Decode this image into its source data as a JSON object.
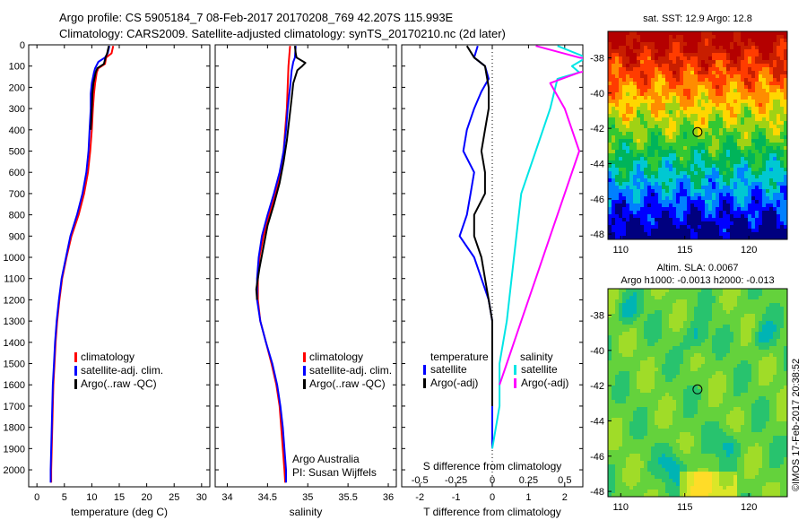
{
  "header": {
    "line1": "Argo profile: CS 5905184_7 08-Feb-2017 20170208_769 42.207S 115.993E",
    "line2": "Climatology: CARS2009. Satellite-adjusted climatology: synTS_20170210.nc (2d later)"
  },
  "colors": {
    "climatology": "#ff0000",
    "satellite": "#0000ff",
    "argo": "#000000",
    "sal_satellite": "#00e5e5",
    "sal_argo": "#ff00ff"
  },
  "chart_data": [
    {
      "type": "line",
      "panel": "temperature",
      "xlabel": "temperature (deg C)",
      "ylabel": "",
      "xlim": [
        -1.5,
        31.5
      ],
      "ylim": [
        2080,
        0
      ],
      "xticks": [
        0,
        5,
        10,
        15,
        20,
        25,
        30
      ],
      "yticks": [
        0,
        100,
        200,
        300,
        400,
        500,
        600,
        700,
        800,
        900,
        1000,
        1100,
        1200,
        1300,
        1400,
        1500,
        1600,
        1700,
        1800,
        1900,
        2000
      ],
      "legend": [
        "climatology",
        "satellite-adj. clim.",
        "Argo(..raw -QC)"
      ],
      "series": [
        {
          "name": "climatology",
          "color_key": "climatology",
          "points": [
            [
              13.9,
              5
            ],
            [
              13.6,
              40
            ],
            [
              12.6,
              60
            ],
            [
              12.4,
              90
            ],
            [
              11.2,
              110
            ],
            [
              10.9,
              130
            ],
            [
              10.6,
              180
            ],
            [
              10.4,
              230
            ],
            [
              10.2,
              300
            ],
            [
              10.0,
              400
            ],
            [
              9.7,
              500
            ],
            [
              9.3,
              600
            ],
            [
              8.6,
              700
            ],
            [
              7.6,
              800
            ],
            [
              6.3,
              900
            ],
            [
              5.4,
              1000
            ],
            [
              4.6,
              1100
            ],
            [
              4.1,
              1200
            ],
            [
              3.7,
              1300
            ],
            [
              3.4,
              1400
            ],
            [
              3.2,
              1500
            ],
            [
              3.0,
              1600
            ],
            [
              2.9,
              1700
            ],
            [
              2.8,
              1800
            ],
            [
              2.7,
              1900
            ],
            [
              2.6,
              2000
            ],
            [
              2.6,
              2060
            ]
          ]
        },
        {
          "name": "satellite-adj. clim.",
          "color_key": "satellite",
          "points": [
            [
              13.2,
              5
            ],
            [
              12.9,
              40
            ],
            [
              12.4,
              60
            ],
            [
              11.2,
              80
            ],
            [
              10.6,
              110
            ],
            [
              10.4,
              130
            ],
            [
              10.0,
              180
            ],
            [
              9.8,
              230
            ],
            [
              9.8,
              300
            ],
            [
              9.6,
              400
            ],
            [
              9.4,
              500
            ],
            [
              9.0,
              600
            ],
            [
              8.3,
              700
            ],
            [
              7.3,
              800
            ],
            [
              6.1,
              900
            ],
            [
              5.3,
              1000
            ],
            [
              4.5,
              1100
            ],
            [
              4.0,
              1200
            ],
            [
              3.6,
              1300
            ],
            [
              3.3,
              1400
            ],
            [
              3.1,
              1500
            ],
            [
              2.9,
              1600
            ],
            [
              2.8,
              1700
            ],
            [
              2.7,
              1800
            ],
            [
              2.6,
              1900
            ],
            [
              2.5,
              2000
            ],
            [
              2.5,
              2060
            ]
          ]
        },
        {
          "name": "Argo(..raw -QC)",
          "color_key": "argo",
          "points": [
            [
              13.1,
              5
            ],
            [
              12.8,
              40
            ],
            [
              12.5,
              60
            ],
            [
              12.2,
              90
            ],
            [
              11.0,
              110
            ],
            [
              10.7,
              130
            ],
            [
              10.3,
              180
            ],
            [
              10.1,
              230
            ],
            [
              10.0,
              300
            ],
            [
              9.8,
              400
            ]
          ]
        }
      ]
    },
    {
      "type": "line",
      "panel": "salinity",
      "xlabel": "salinity",
      "xlim": [
        33.85,
        36.1
      ],
      "ylim": [
        2080,
        0
      ],
      "xticks": [
        34,
        34.5,
        35,
        35.5,
        36
      ],
      "legend": [
        "climatology",
        "satellite-adj. clim.",
        "Argo(..raw -QC)"
      ],
      "annotation": [
        "Argo Australia",
        "PI: Susan Wijffels"
      ],
      "series": [
        {
          "name": "climatology",
          "color_key": "climatology",
          "points": [
            [
              34.78,
              5
            ],
            [
              34.76,
              100
            ],
            [
              34.75,
              200
            ],
            [
              34.74,
              300
            ],
            [
              34.72,
              400
            ],
            [
              34.7,
              500
            ],
            [
              34.66,
              600
            ],
            [
              34.6,
              700
            ],
            [
              34.52,
              800
            ],
            [
              34.45,
              900
            ],
            [
              34.4,
              1000
            ],
            [
              34.38,
              1100
            ],
            [
              34.38,
              1200
            ],
            [
              34.41,
              1300
            ],
            [
              34.48,
              1400
            ],
            [
              34.55,
              1500
            ],
            [
              34.61,
              1600
            ],
            [
              34.65,
              1700
            ],
            [
              34.67,
              1800
            ],
            [
              34.69,
              1900
            ],
            [
              34.71,
              2000
            ],
            [
              34.72,
              2060
            ]
          ]
        },
        {
          "name": "satellite-adj. clim.",
          "color_key": "satellite",
          "points": [
            [
              34.85,
              5
            ],
            [
              34.84,
              60
            ],
            [
              34.82,
              80
            ],
            [
              34.8,
              120
            ],
            [
              34.78,
              200
            ],
            [
              34.75,
              300
            ],
            [
              34.73,
              400
            ],
            [
              34.7,
              500
            ],
            [
              34.65,
              600
            ],
            [
              34.58,
              700
            ],
            [
              34.5,
              800
            ],
            [
              34.43,
              900
            ],
            [
              34.39,
              1000
            ],
            [
              34.37,
              1100
            ],
            [
              34.37,
              1200
            ],
            [
              34.41,
              1300
            ],
            [
              34.48,
              1400
            ],
            [
              34.56,
              1500
            ],
            [
              34.62,
              1600
            ],
            [
              34.66,
              1700
            ],
            [
              34.69,
              1800
            ],
            [
              34.71,
              1900
            ],
            [
              34.73,
              2000
            ],
            [
              34.73,
              2060
            ]
          ]
        },
        {
          "name": "Argo(..raw -QC)",
          "color_key": "argo",
          "points": [
            [
              34.84,
              5
            ],
            [
              34.85,
              40
            ],
            [
              34.86,
              60
            ],
            [
              34.97,
              85
            ],
            [
              34.93,
              100
            ],
            [
              34.87,
              120
            ],
            [
              34.82,
              180
            ],
            [
              34.8,
              250
            ],
            [
              34.77,
              350
            ],
            [
              34.74,
              450
            ],
            [
              34.7,
              550
            ],
            [
              34.65,
              650
            ],
            [
              34.58,
              750
            ],
            [
              34.5,
              850
            ],
            [
              34.45,
              950
            ],
            [
              34.4,
              1050
            ],
            [
              34.36,
              1150
            ],
            [
              34.37,
              1200
            ]
          ]
        }
      ]
    },
    {
      "type": "line",
      "panel": "difference",
      "xlabel": "T difference from climatology",
      "xlabel_top": "S difference from climatology",
      "xlim": [
        -2.5,
        2.5
      ],
      "ylim": [
        2080,
        0
      ],
      "xticks": [
        -2,
        -1,
        0,
        1,
        2
      ],
      "xticks_sal": [
        "-0.5",
        "-0.25",
        "0",
        "0.25",
        "0.5"
      ],
      "legend_titles": [
        "temperature",
        "salinity"
      ],
      "legend": [
        "satellite",
        "Argo(-adj)",
        "satellite",
        "Argo(-adj)"
      ],
      "series": [
        {
          "name": "satellite",
          "color_key": "satellite",
          "group": "temperature",
          "points": [
            [
              -0.4,
              5
            ],
            [
              -0.5,
              60
            ],
            [
              -0.2,
              100
            ],
            [
              -0.1,
              160
            ],
            [
              -0.3,
              220
            ],
            [
              -0.5,
              300
            ],
            [
              -0.7,
              400
            ],
            [
              -0.8,
              500
            ],
            [
              -0.5,
              600
            ],
            [
              -0.6,
              700
            ],
            [
              -0.7,
              800
            ],
            [
              -0.9,
              900
            ],
            [
              -0.5,
              1000
            ],
            [
              -0.3,
              1100
            ],
            [
              -0.1,
              1200
            ],
            [
              0,
              1300
            ],
            [
              0,
              1500
            ],
            [
              0,
              1700
            ],
            [
              0,
              1900
            ]
          ]
        },
        {
          "name": "Argo(-adj)",
          "color_key": "argo",
          "group": "temperature",
          "points": [
            [
              -0.7,
              5
            ],
            [
              -0.5,
              60
            ],
            [
              -0.2,
              100
            ],
            [
              -0.1,
              200
            ],
            [
              -0.1,
              300
            ],
            [
              -0.2,
              400
            ],
            [
              -0.3,
              500
            ],
            [
              -0.2,
              600
            ],
            [
              -0.2,
              700
            ],
            [
              -0.5,
              800
            ],
            [
              -0.5,
              900
            ],
            [
              -0.3,
              1000
            ],
            [
              -0.2,
              1100
            ],
            [
              -0.1,
              1200
            ],
            [
              0,
              1300
            ],
            [
              0,
              1700
            ]
          ]
        },
        {
          "name": "satellite",
          "color_key": "sal_satellite",
          "group": "salinity",
          "points": [
            [
              0.45,
              5
            ],
            [
              0.65,
              60
            ],
            [
              0.55,
              100
            ],
            [
              0.6,
              130
            ],
            [
              0.45,
              160
            ],
            [
              0.4,
              300
            ],
            [
              0.3,
              500
            ],
            [
              0.2,
              700
            ],
            [
              0.15,
              1000
            ],
            [
              0.1,
              1300
            ],
            [
              0.05,
              1500
            ],
            [
              0.05,
              1700
            ],
            [
              0,
              1900
            ]
          ]
        },
        {
          "name": "Argo(-adj)",
          "color_key": "sal_argo",
          "group": "salinity",
          "points": [
            [
              0.3,
              5
            ],
            [
              0.6,
              60
            ],
            [
              0.9,
              90
            ],
            [
              0.6,
              130
            ],
            [
              0.4,
              180
            ],
            [
              0.5,
              300
            ],
            [
              0.6,
              500
            ],
            [
              0.5,
              700
            ],
            [
              0.4,
              900
            ],
            [
              0.3,
              1100
            ],
            [
              0.2,
              1300
            ],
            [
              0.1,
              1500
            ],
            [
              0.05,
              1600
            ]
          ]
        }
      ]
    },
    {
      "type": "heatmap",
      "panel": "sst_map",
      "title": "sat. SST: 12.9 Argo: 12.8",
      "xlim": [
        109,
        123
      ],
      "ylim": [
        -48.3,
        -36.5
      ],
      "xticks": [
        110,
        115,
        120
      ],
      "yticks": [
        -38,
        -40,
        -42,
        -44,
        -46,
        -48
      ],
      "marker": {
        "lon": 115.99,
        "lat": -42.21
      },
      "colorscale": [
        "#00007f",
        "#0000ff",
        "#0080ff",
        "#00c8d2",
        "#00b45a",
        "#32c832",
        "#a0d214",
        "#ffd700",
        "#ff8c00",
        "#ff3c00",
        "#c81e00",
        "#b40000"
      ]
    },
    {
      "type": "heatmap",
      "panel": "sla_map",
      "title": "Altim. SLA: 0.0067",
      "subtitle": "Argo h1000: -0.0013 h2000: -0.013",
      "xlim": [
        109,
        123
      ],
      "ylim": [
        -48.3,
        -36.5
      ],
      "xticks": [
        110,
        115,
        120
      ],
      "yticks": [
        -38,
        -40,
        -42,
        -44,
        -46,
        -48
      ],
      "marker": {
        "lon": 115.99,
        "lat": -42.21
      },
      "colorscale": [
        "#00b4b4",
        "#28c36e",
        "#64d23c",
        "#a0dc28",
        "#dce628",
        "#ffdc28"
      ]
    }
  ],
  "credit": "©IMOS 17-Feb-2017 20:38:52"
}
